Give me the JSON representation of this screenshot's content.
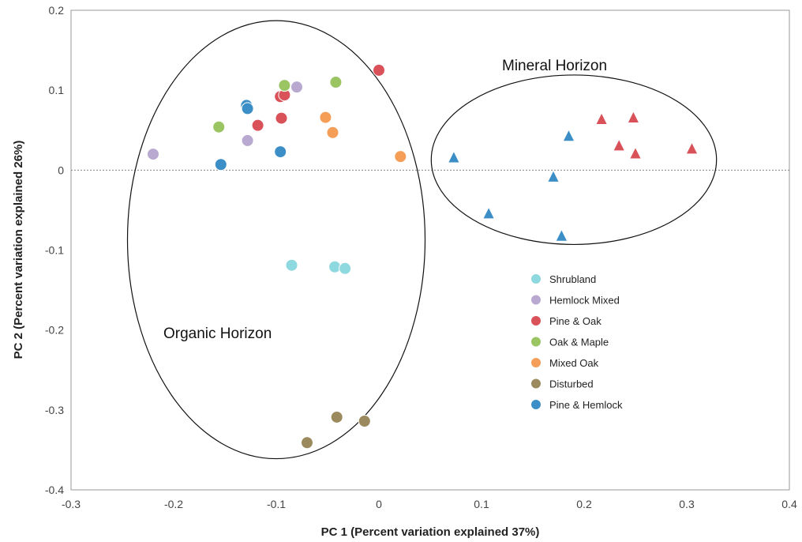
{
  "chart_data": {
    "type": "scatter",
    "title": "",
    "xlabel": "PC 1 (Percent variation explained 37%)",
    "ylabel": "PC 2 (Percent variation explained 26%)",
    "xlim": [
      -0.3,
      0.4
    ],
    "ylim": [
      -0.4,
      0.2
    ],
    "xticks": [
      -0.3,
      -0.2,
      -0.1,
      0,
      0.1,
      0.2,
      0.3,
      0.4
    ],
    "xtick_labels": [
      "-0.3",
      "-0.2",
      "-0.1",
      "0",
      "0.1",
      "0.2",
      "0.3",
      "0.4"
    ],
    "yticks": [
      -0.4,
      -0.3,
      -0.2,
      -0.1,
      0,
      0.1,
      0.2
    ],
    "ytick_labels": [
      "-0.4",
      "-0.3",
      "-0.2",
      "-0.1",
      "0",
      "0.1",
      "0.2"
    ],
    "grid": false,
    "reference_line_y": 0,
    "legend_position": "lower-right",
    "annotations": [
      {
        "text": "Mineral Horizon",
        "x": 0.12,
        "y": 0.125
      },
      {
        "text": "Organic Horizon",
        "x": -0.21,
        "y": -0.21
      }
    ],
    "ellipses": [
      {
        "name": "organic-horizon",
        "cx": -0.1,
        "cy": -0.087,
        "rx": 0.145,
        "ry": 0.274
      },
      {
        "name": "mineral-horizon",
        "cx": 0.19,
        "cy": 0.013,
        "rx": 0.139,
        "ry": 0.106
      }
    ],
    "series": [
      {
        "name": "Shrubland",
        "color": "#8ed8e0",
        "points": [
          [
            -0.085,
            -0.119
          ],
          [
            -0.043,
            -0.121
          ],
          [
            -0.033,
            -0.123
          ]
        ]
      },
      {
        "name": "Hemlock Mixed",
        "color": "#b9a9d0",
        "points": [
          [
            -0.22,
            0.02
          ],
          [
            -0.128,
            0.037
          ],
          [
            -0.08,
            0.104
          ]
        ]
      },
      {
        "name": "Pine & Oak",
        "color": "#d9525a",
        "points": [
          [
            -0.118,
            0.056
          ],
          [
            -0.096,
            0.092
          ],
          [
            -0.092,
            0.094
          ],
          [
            -0.095,
            0.065
          ],
          [
            0.0,
            0.125
          ],
          [
            0.217,
            0.064
          ],
          [
            0.248,
            0.066
          ],
          [
            0.234,
            0.031
          ],
          [
            0.25,
            0.021
          ],
          [
            0.305,
            0.027
          ]
        ]
      },
      {
        "name": "Oak & Maple",
        "color": "#9bc463",
        "points": [
          [
            -0.156,
            0.054
          ],
          [
            -0.092,
            0.106
          ],
          [
            -0.042,
            0.11
          ]
        ]
      },
      {
        "name": "Mixed Oak",
        "color": "#f59e58",
        "points": [
          [
            -0.052,
            0.066
          ],
          [
            -0.045,
            0.047
          ],
          [
            0.021,
            0.017
          ]
        ]
      },
      {
        "name": "Disturbed",
        "color": "#9b8a5e",
        "points": [
          [
            -0.07,
            -0.341
          ],
          [
            -0.041,
            -0.309
          ],
          [
            -0.014,
            -0.314
          ]
        ]
      },
      {
        "name": "Pine & Hemlock",
        "color": "#3b8ec6",
        "points": [
          [
            -0.154,
            0.007
          ],
          [
            -0.129,
            0.081
          ],
          [
            -0.128,
            0.077
          ],
          [
            -0.096,
            0.023
          ],
          [
            0.073,
            0.016
          ],
          [
            0.107,
            -0.054
          ],
          [
            0.185,
            0.043
          ],
          [
            0.17,
            -0.008
          ],
          [
            0.178,
            -0.082
          ]
        ]
      }
    ]
  }
}
